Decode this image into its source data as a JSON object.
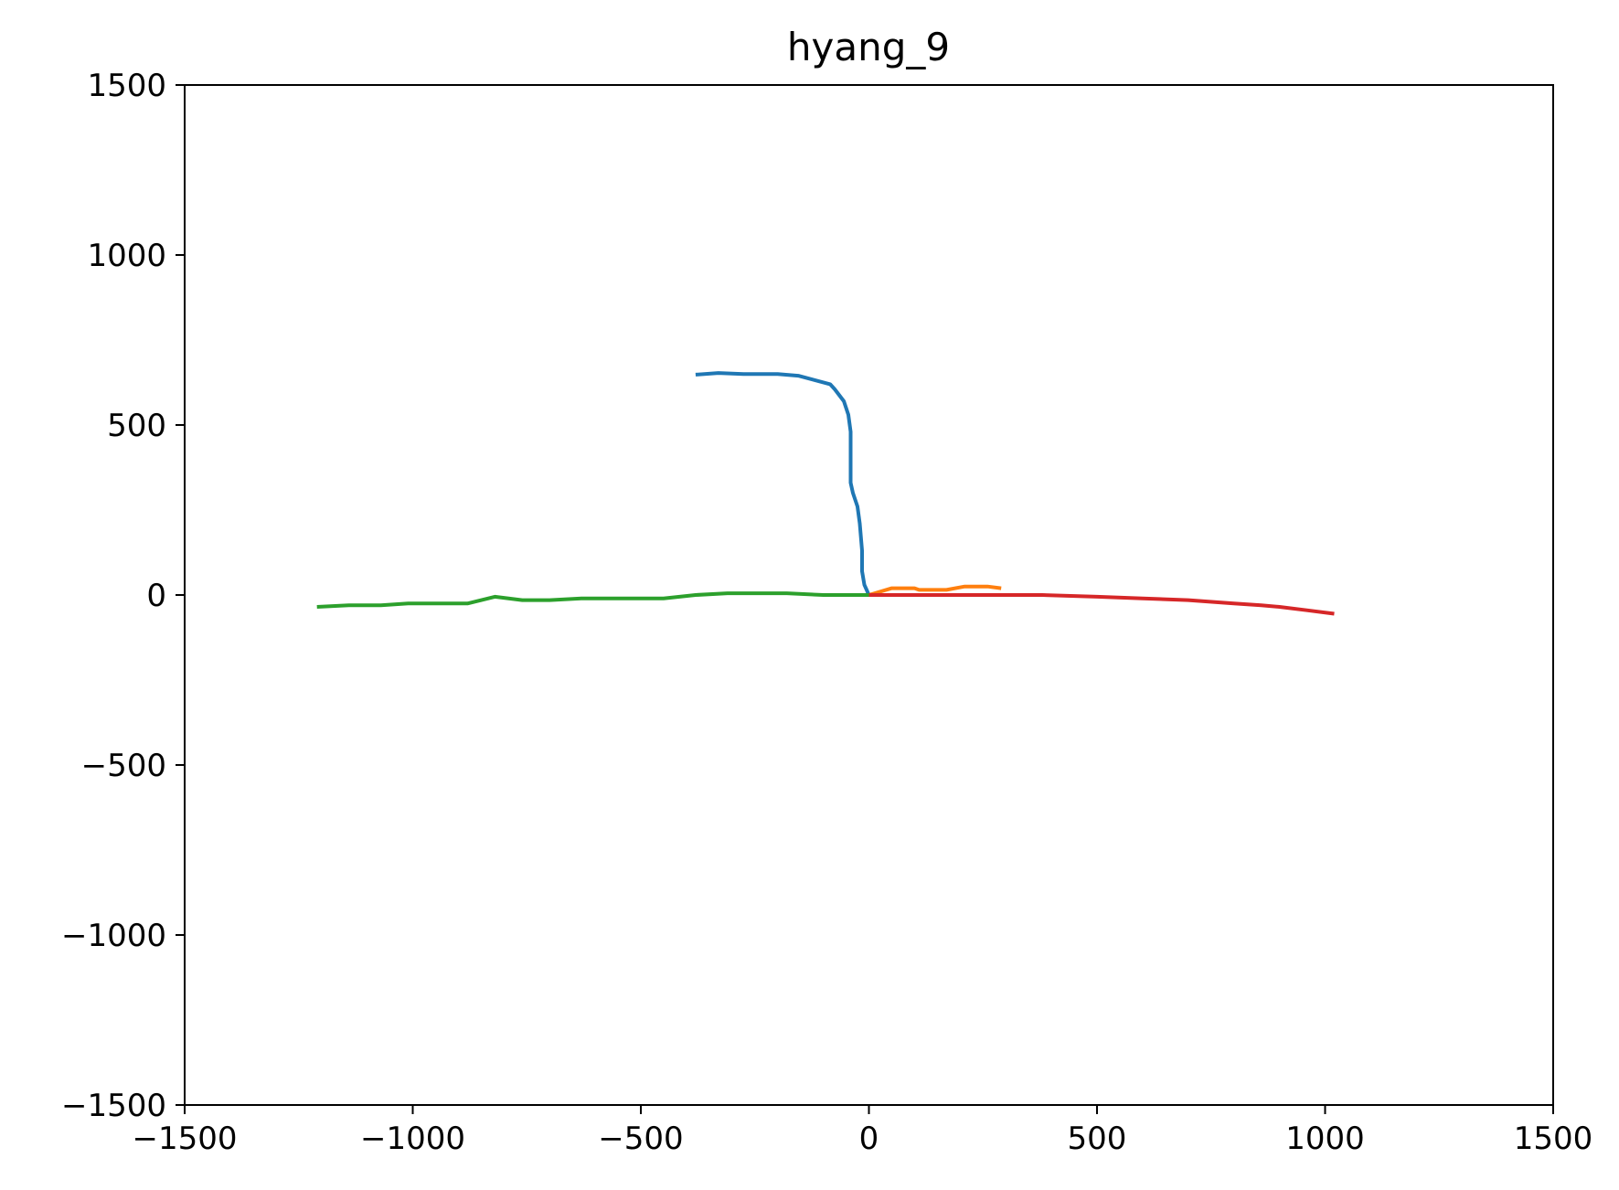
{
  "chart_data": {
    "type": "line",
    "title": "hyang_9",
    "xlabel": "",
    "ylabel": "",
    "xlim": [
      -1500,
      1500
    ],
    "ylim": [
      -1500,
      1500
    ],
    "xticks": [
      -1500,
      -1000,
      -500,
      0,
      500,
      1000,
      1500
    ],
    "yticks": [
      -1500,
      -1000,
      -500,
      0,
      500,
      1000,
      1500
    ],
    "xtick_labels": [
      "−1500",
      "−1000",
      "−500",
      "0",
      "500",
      "1000",
      "1500"
    ],
    "ytick_labels": [
      "−1500",
      "−1000",
      "−500",
      "0",
      "500",
      "1000",
      "1500"
    ],
    "grid": false,
    "series": [
      {
        "color": "#1f77b4",
        "x": [
          0,
          -10,
          -15,
          -15,
          -20,
          -25,
          -35,
          -40,
          -40,
          -40,
          -45,
          -55,
          -75,
          -85,
          -155,
          -200,
          -275,
          -330,
          -380
        ],
        "y": [
          0,
          30,
          70,
          130,
          210,
          260,
          300,
          330,
          380,
          480,
          530,
          570,
          605,
          620,
          645,
          650,
          650,
          653,
          648
        ]
      },
      {
        "color": "#ff7f0e",
        "x": [
          0,
          50,
          100,
          110,
          170,
          210,
          260,
          290
        ],
        "y": [
          0,
          20,
          20,
          15,
          15,
          25,
          25,
          20
        ]
      },
      {
        "color": "#2ca02c",
        "x": [
          0,
          -100,
          -180,
          -310,
          -380,
          -450,
          -630,
          -700,
          -760,
          -820,
          -880,
          -1010,
          -1070,
          -1140,
          -1210
        ],
        "y": [
          0,
          0,
          5,
          5,
          0,
          -10,
          -10,
          -15,
          -15,
          -5,
          -25,
          -25,
          -30,
          -30,
          -35
        ]
      },
      {
        "color": "#d62728",
        "x": [
          0,
          100,
          200,
          300,
          380,
          500,
          600,
          700,
          800,
          860,
          900,
          960,
          1020
        ],
        "y": [
          0,
          0,
          0,
          0,
          0,
          -5,
          -10,
          -15,
          -25,
          -30,
          -35,
          -45,
          -55
        ]
      }
    ]
  }
}
